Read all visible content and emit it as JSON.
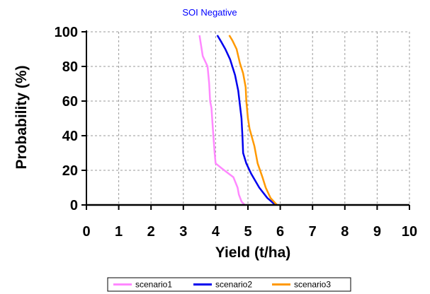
{
  "chart_data": {
    "type": "line",
    "title": "SOI Negative",
    "xlabel": "Yield (t/ha)",
    "ylabel": "Probability (%)",
    "xlim": [
      0,
      10
    ],
    "ylim": [
      0,
      100
    ],
    "xticks": [
      0,
      1,
      2,
      3,
      4,
      5,
      6,
      7,
      8,
      9,
      10
    ],
    "yticks": [
      0,
      20,
      40,
      60,
      80,
      100
    ],
    "grid": true,
    "legend_position": "bottom",
    "series": [
      {
        "name": "scenario1",
        "color": "#ff88ff",
        "points": [
          [
            4.9,
            0
          ],
          [
            4.8,
            2
          ],
          [
            4.72,
            6
          ],
          [
            4.68,
            10
          ],
          [
            4.55,
            16
          ],
          [
            4.2,
            21
          ],
          [
            4.0,
            24
          ],
          [
            3.97,
            30
          ],
          [
            3.93,
            40
          ],
          [
            3.9,
            48
          ],
          [
            3.87,
            56
          ],
          [
            3.83,
            60
          ],
          [
            3.8,
            70
          ],
          [
            3.75,
            80
          ],
          [
            3.6,
            86
          ],
          [
            3.5,
            98
          ]
        ]
      },
      {
        "name": "scenario2",
        "color": "#0000ee",
        "points": [
          [
            5.85,
            0
          ],
          [
            5.6,
            4
          ],
          [
            5.35,
            10
          ],
          [
            5.1,
            18
          ],
          [
            4.95,
            24
          ],
          [
            4.85,
            30
          ],
          [
            4.83,
            40
          ],
          [
            4.8,
            50
          ],
          [
            4.75,
            58
          ],
          [
            4.7,
            66
          ],
          [
            4.6,
            75
          ],
          [
            4.45,
            84
          ],
          [
            4.3,
            90
          ],
          [
            4.15,
            95
          ],
          [
            4.05,
            98
          ]
        ]
      },
      {
        "name": "scenario3",
        "color": "#ff9900",
        "points": [
          [
            5.9,
            0
          ],
          [
            5.7,
            4
          ],
          [
            5.55,
            10
          ],
          [
            5.45,
            16
          ],
          [
            5.3,
            24
          ],
          [
            5.2,
            34
          ],
          [
            5.05,
            44
          ],
          [
            5.0,
            50
          ],
          [
            4.95,
            60
          ],
          [
            4.93,
            68
          ],
          [
            4.85,
            76
          ],
          [
            4.75,
            82
          ],
          [
            4.65,
            90
          ],
          [
            4.52,
            95
          ],
          [
            4.42,
            98
          ]
        ]
      }
    ]
  }
}
